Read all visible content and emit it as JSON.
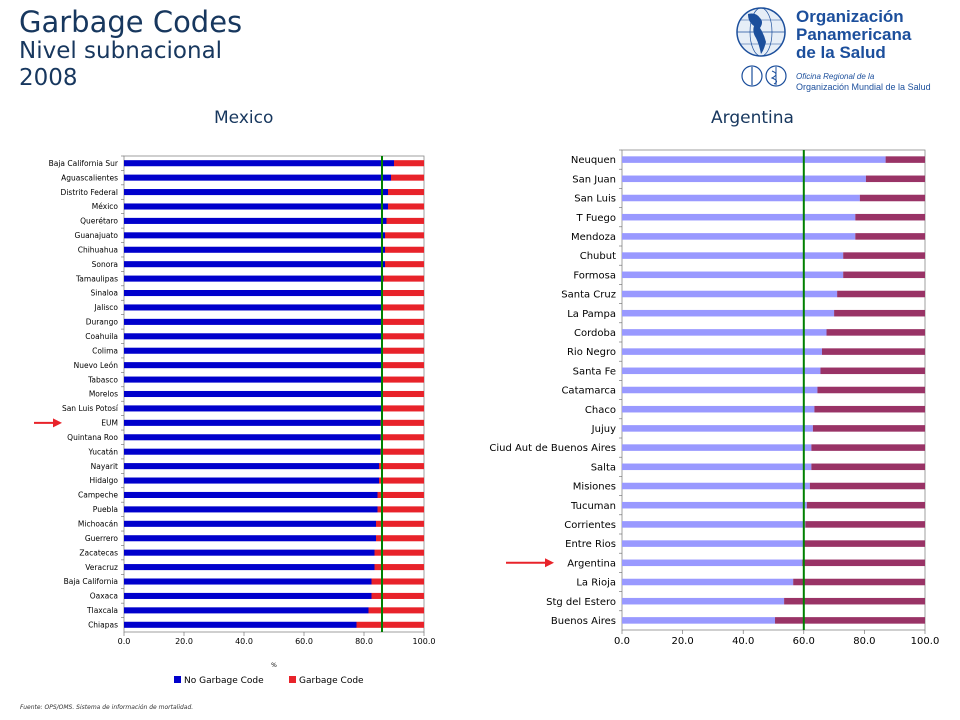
{
  "header": {
    "title": "Garbage Codes",
    "subtitle_line1": "Nivel subnacional",
    "subtitle_line2": "2008"
  },
  "logo": {
    "line1": "Organización",
    "line2": "Panamericana",
    "line3": "de la Salud",
    "small1": "Oficina Regional de la",
    "small2": "Organización Mundial de la Salud"
  },
  "footnote": "Fuente: OPS/OMS. Sistema de información de mortalidad.",
  "colors": {
    "mexico_no_gc": "#0000cc",
    "mexico_gc": "#e8232a",
    "argentina_no_gc": "#9999ff",
    "argentina_gc": "#993366",
    "reference_line": "#008000",
    "arrow": "#e8232a"
  },
  "chart_data": [
    {
      "type": "bar",
      "orientation": "horizontal",
      "stacked": true,
      "title": "Mexico",
      "categories": [
        "Baja California Sur",
        "Aguascalientes",
        "Distrito Federal",
        "México",
        "Querétaro",
        "Guanajuato",
        "Chihuahua",
        "Sonora",
        "Tamaulipas",
        "Sinaloa",
        "Jalisco",
        "Durango",
        "Coahuila",
        "Colima",
        "Nuevo León",
        "Tabasco",
        "Morelos",
        "San Luis Potosí",
        "EUM",
        "Quintana Roo",
        "Yucatán",
        "Nayarit",
        "Hidalgo",
        "Campeche",
        "Puebla",
        "Michoacán",
        "Guerrero",
        "Zacatecas",
        "Veracruz",
        "Baja California",
        "Oaxaca",
        "Tlaxcala",
        "Chiapas"
      ],
      "series": [
        {
          "name": "No Garbage Code",
          "values": [
            90,
            89,
            88,
            88,
            87.5,
            87,
            87,
            87,
            86.5,
            86,
            86,
            86,
            86,
            86,
            86,
            86,
            86,
            86,
            85.5,
            85.5,
            85.5,
            85,
            85,
            84.5,
            84.5,
            84,
            84,
            83.5,
            83.5,
            82.5,
            82.5,
            81.5,
            77.5
          ]
        },
        {
          "name": "Garbage Code",
          "values": [
            10,
            11,
            12,
            12,
            12.5,
            13,
            13,
            13,
            13.5,
            14,
            14,
            14,
            14,
            14,
            14,
            14,
            14,
            14,
            14.5,
            14.5,
            14.5,
            15,
            15,
            15.5,
            15.5,
            16,
            16,
            16.5,
            16.5,
            17.5,
            17.5,
            18.5,
            22.5
          ]
        }
      ],
      "xlim": [
        0,
        100
      ],
      "xticks": [
        "0.0",
        "20.0",
        "40.0",
        "60.0",
        "80.0",
        "100.0"
      ],
      "xlabel": "%",
      "reference_value": 86,
      "highlight": "EUM",
      "legend": "bottom"
    },
    {
      "type": "bar",
      "orientation": "horizontal",
      "stacked": true,
      "title": "Argentina",
      "categories": [
        "Neuquen",
        "San Juan",
        "San Luis",
        "T Fuego",
        "Mendoza",
        "Chubut",
        "Formosa",
        "Santa Cruz",
        "La Pampa",
        "Cordoba",
        "Rio Negro",
        "Santa Fe",
        "Catamarca",
        "Chaco",
        "Jujuy",
        "Ciud Aut de Buenos Aires",
        "Salta",
        "Misiones",
        "Tucuman",
        "Corrientes",
        "Entre Rios",
        "Argentina",
        "La Rioja",
        "Stg del Estero",
        "Buenos Aires"
      ],
      "series": [
        {
          "name": "No Garbage Code",
          "values": [
            87,
            80.5,
            78.5,
            77,
            77,
            73,
            73,
            71,
            70,
            67.5,
            66,
            65.5,
            64.5,
            63.5,
            63,
            62.5,
            62.5,
            62,
            61,
            60.5,
            60,
            59.5,
            56.5,
            53.5,
            50.5
          ]
        },
        {
          "name": "Garbage Code",
          "values": [
            13,
            19.5,
            21.5,
            23,
            23,
            27,
            27,
            29,
            30,
            32.5,
            34,
            34.5,
            35.5,
            36.5,
            37,
            37.5,
            37.5,
            38,
            39,
            39.5,
            40,
            40.5,
            43.5,
            46.5,
            49.5
          ]
        }
      ],
      "xlim": [
        0,
        100
      ],
      "xticks": [
        "0.0",
        "20.0",
        "40.0",
        "60.0",
        "80.0",
        "100.0"
      ],
      "reference_value": 60,
      "highlight": "Argentina"
    }
  ]
}
